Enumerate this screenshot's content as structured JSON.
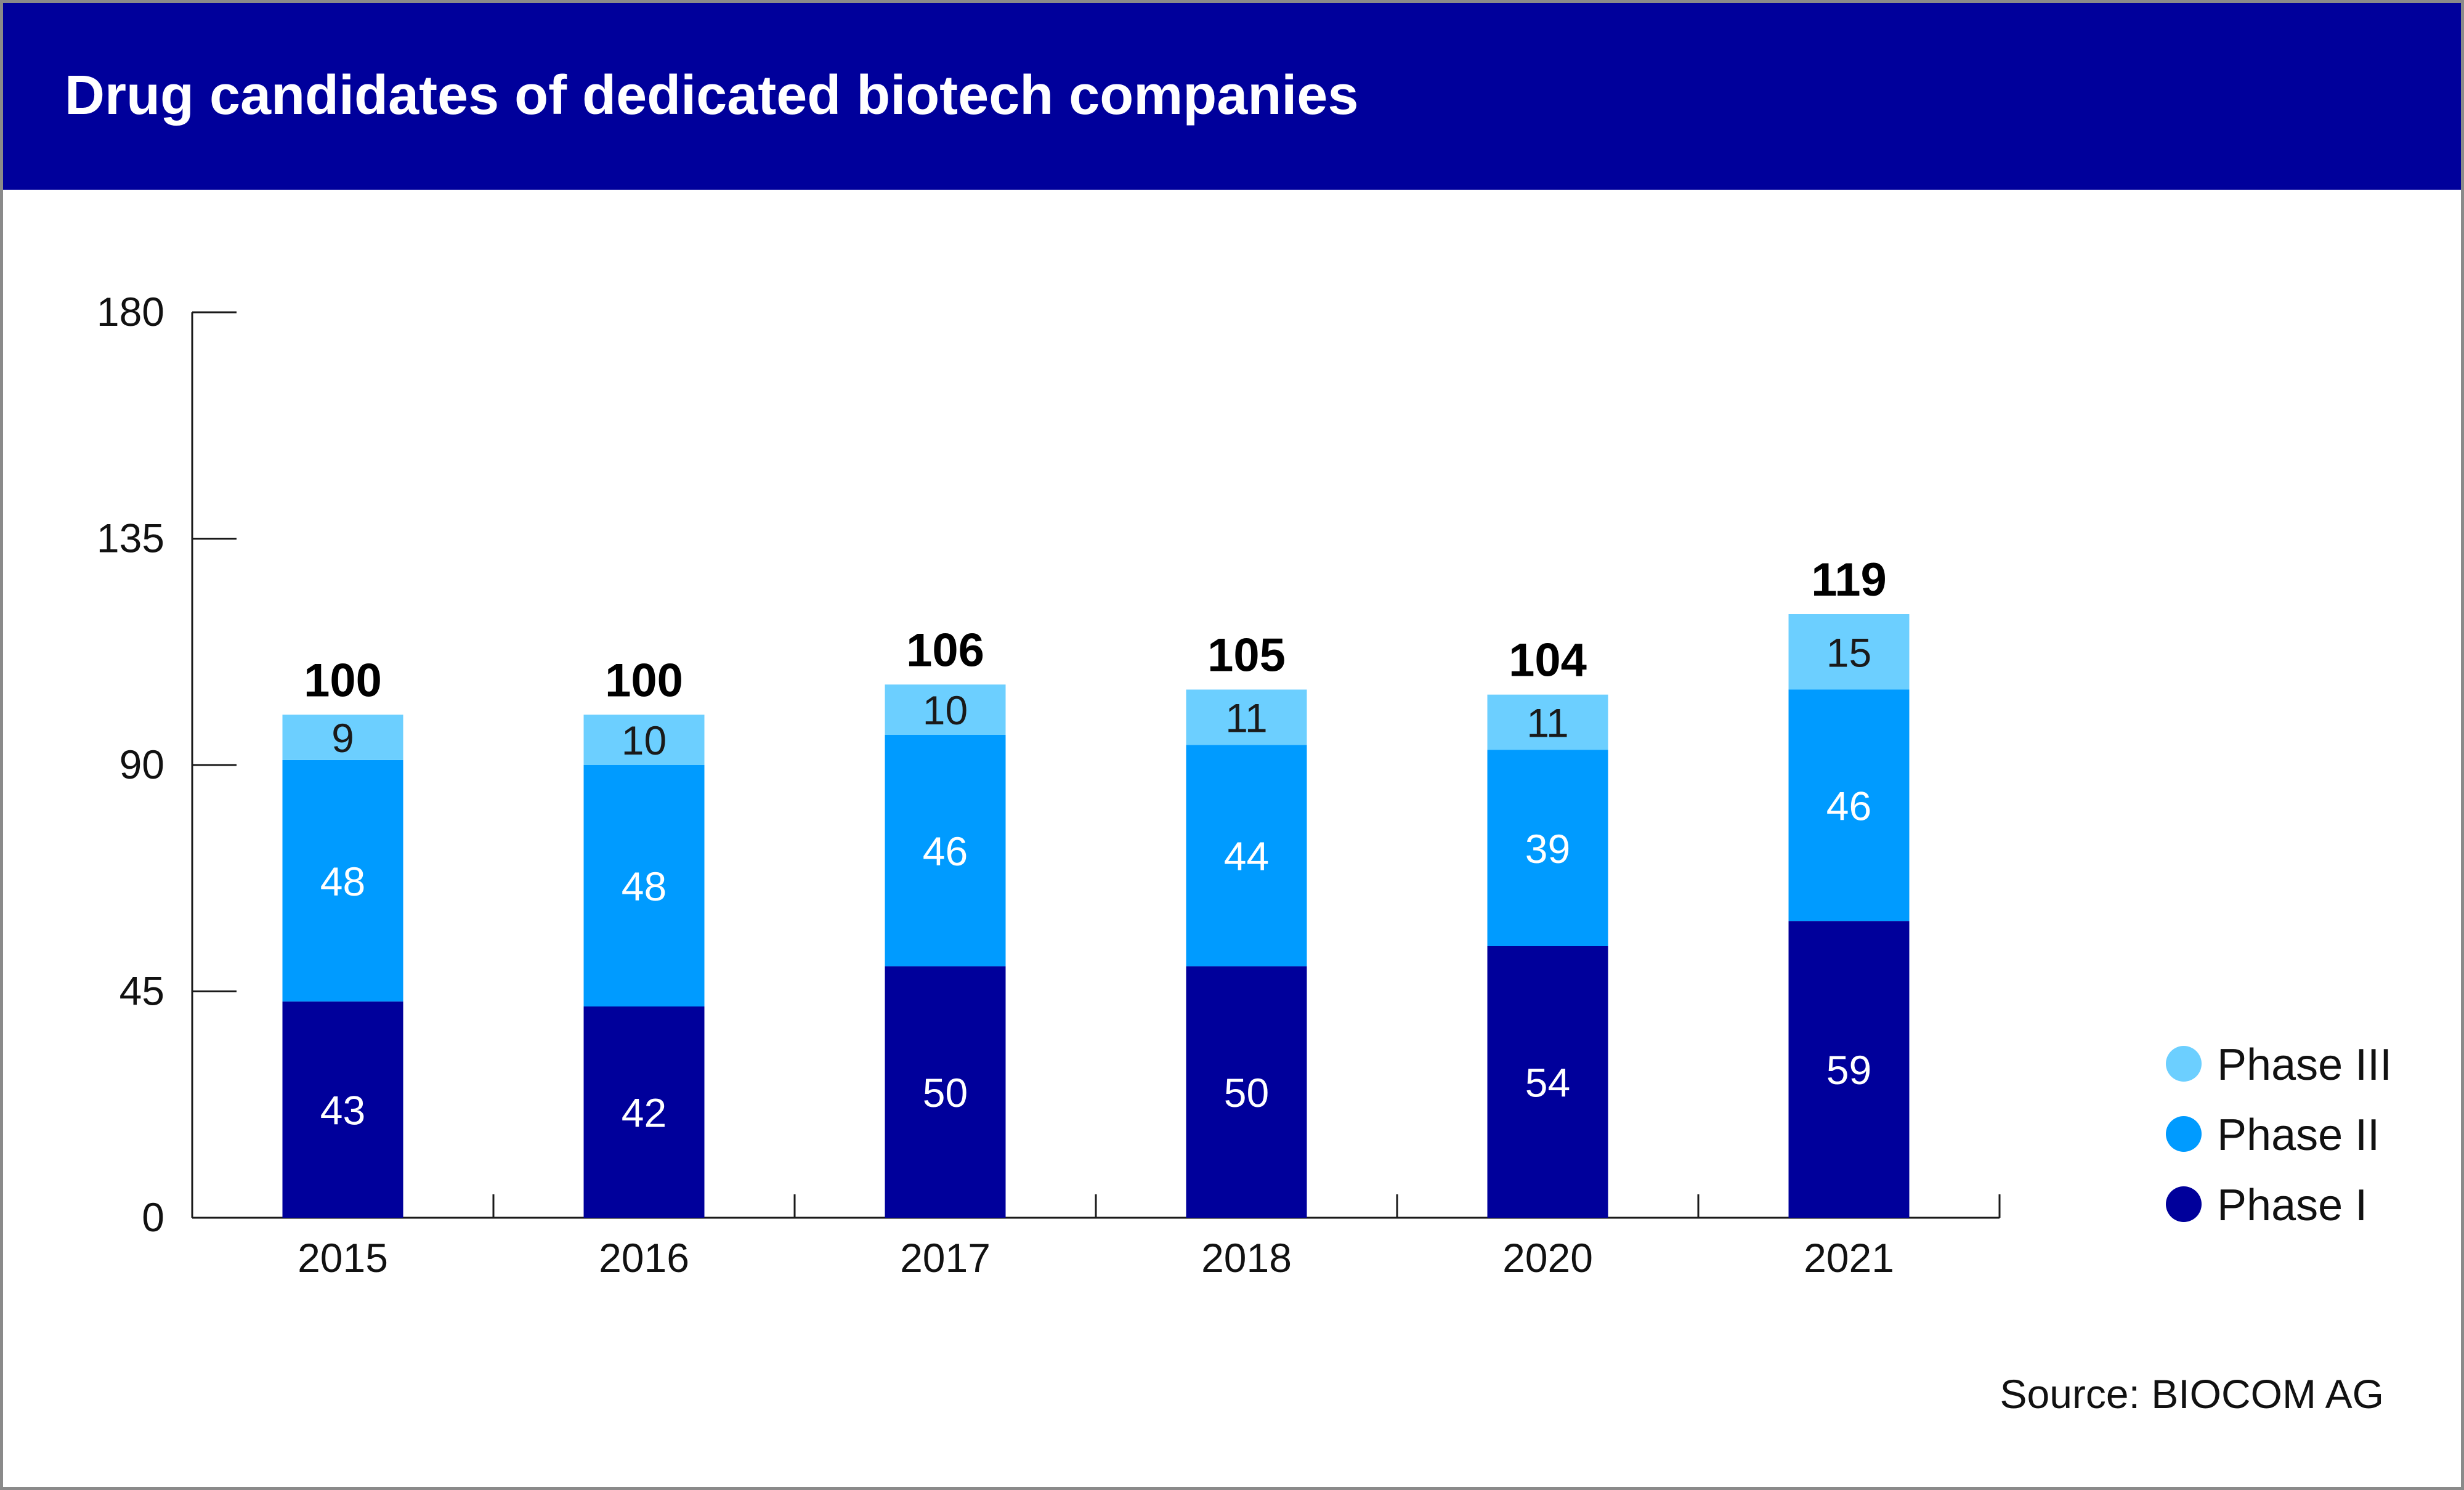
{
  "title": "Drug candidates of dedicated biotech companies",
  "source": "Source: BIOCOM AG",
  "colors": {
    "header_bg": "#00009b",
    "phase_1": "#00009b",
    "phase_2": "#009bff",
    "phase_3": "#6ccfff"
  },
  "chart_data": {
    "type": "bar",
    "stacked": true,
    "title": "Drug candidates of dedicated biotech companies",
    "xlabel": "",
    "ylabel": "",
    "ylim": [
      0,
      180
    ],
    "yticks": [
      0,
      45,
      90,
      135,
      180
    ],
    "categories": [
      "2015",
      "2016",
      "2017",
      "2018",
      "2020",
      "2021"
    ],
    "series": [
      {
        "name": "Phase I",
        "color": "#00009b",
        "values": [
          43,
          42,
          50,
          50,
          54,
          59
        ]
      },
      {
        "name": "Phase II",
        "color": "#009bff",
        "values": [
          48,
          48,
          46,
          44,
          39,
          46
        ]
      },
      {
        "name": "Phase III",
        "color": "#6ccfff",
        "values": [
          9,
          10,
          10,
          11,
          11,
          15
        ]
      }
    ],
    "totals": [
      100,
      100,
      106,
      105,
      104,
      119
    ],
    "legend": {
      "placement": "bottom-right",
      "order": [
        "Phase III",
        "Phase II",
        "Phase I"
      ]
    },
    "grid": false
  }
}
